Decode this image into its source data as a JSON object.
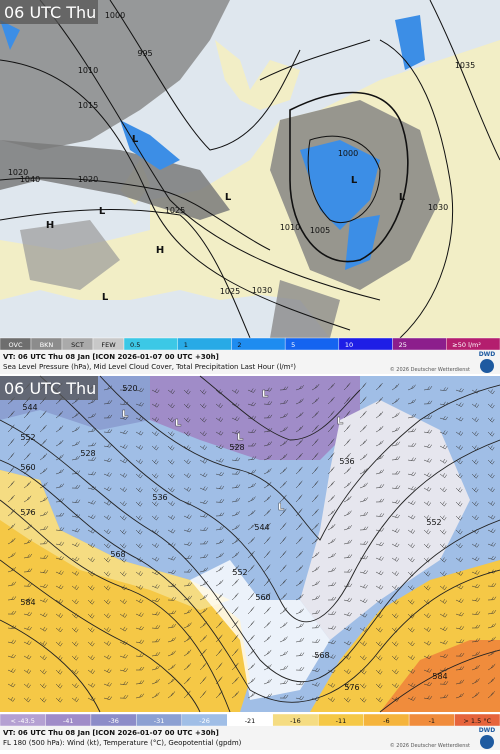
{
  "panels": [
    {
      "title": "06 UTC Thu",
      "legend": [
        {
          "label": "OVC",
          "color": "#6e6e6e"
        },
        {
          "label": "BKN",
          "color": "#8c8c8c"
        },
        {
          "label": "SCT",
          "color": "#aaaaaa"
        },
        {
          "label": "FEW",
          "color": "#c8c8c8"
        },
        {
          "label": "0.5",
          "color": "#3cc8e6"
        },
        {
          "label": "1",
          "color": "#28aae6"
        },
        {
          "label": "2",
          "color": "#1e8cf0"
        },
        {
          "label": "5",
          "color": "#1464f0"
        },
        {
          "label": "10",
          "color": "#1e1ee6"
        },
        {
          "label": "25",
          "color": "#8c1e8c"
        },
        {
          "label": "≥50 l/m²",
          "color": "#b41e6e"
        }
      ],
      "caption": "VT: 06 UTC Thu   08 Jan [ICON 2026-01-07 00 UTC +30h]",
      "subcaption": "Sea Level Pressure (hPa), Mid Level Cloud Cover, Total Precipitation Last Hour (l/m²)",
      "copyright": "© 2026 Deutscher Wetterdienst",
      "logo": "DWD",
      "contour_labels": [
        "1000",
        "995",
        "1010",
        "1015",
        "1020",
        "1025",
        "1030",
        "1040",
        "1005",
        "1000",
        "1010",
        "1020",
        "1025",
        "1030",
        "1035"
      ],
      "centers": [
        "L",
        "L",
        "L",
        "L",
        "L",
        "H",
        "H",
        "L"
      ]
    },
    {
      "title": "06 UTC Thu",
      "legend": [
        {
          "label": "< -43.5",
          "color": "#b4a0d2"
        },
        {
          "label": "-41",
          "color": "#a08cc8"
        },
        {
          "label": "-36",
          "color": "#8c8cc8"
        },
        {
          "label": "-31",
          "color": "#8ca0d2"
        },
        {
          "label": "-26",
          "color": "#a0bee6"
        },
        {
          "label": "-21",
          "color": "#ffffff"
        },
        {
          "label": "-16",
          "color": "#f5dc82"
        },
        {
          "label": "-11",
          "color": "#f5c846"
        },
        {
          "label": "-6",
          "color": "#f5b43c"
        },
        {
          "label": "-1",
          "color": "#f08c3c"
        },
        {
          "label": "> 1.5 °C",
          "color": "#e6643c"
        }
      ],
      "caption": "VT: 06 UTC Thu   08 Jan [ICON 2026-01-07 00 UTC +30h]",
      "subcaption": "FL 180 (500 hPa): Wind (kt), Temperature (°C), Geopotential (gpdm)",
      "copyright": "© 2026 Deutscher Wetterdienst",
      "logo": "DWD",
      "contour_labels": [
        "544",
        "552",
        "560",
        "568",
        "576",
        "584",
        "520",
        "528",
        "536",
        "528",
        "536",
        "544",
        "552",
        "560",
        "568",
        "576",
        "584",
        "552"
      ],
      "centers": [
        "L",
        "L",
        "L",
        "L",
        "L",
        "L"
      ]
    }
  ]
}
